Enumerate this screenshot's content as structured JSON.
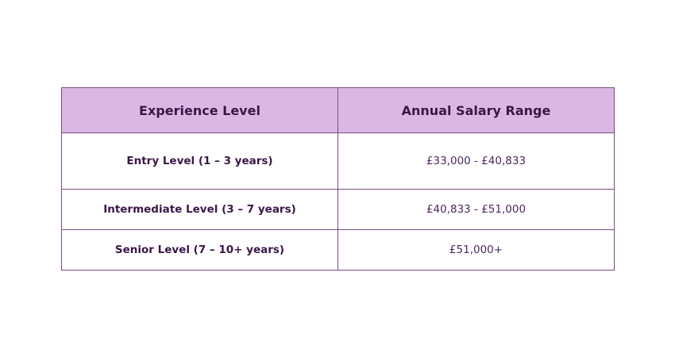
{
  "table": {
    "headers": [
      "Experience Level",
      "Annual Salary Range"
    ],
    "rows": [
      {
        "level": "Entry Level (1 – 3 years)",
        "salary": "£33,000 - £40,833"
      },
      {
        "level": "Intermediate Level (3 – 7 years)",
        "salary": "£40,833 - £51,000"
      },
      {
        "level": "Senior Level (7 – 10+ years)",
        "salary": "£51,000+"
      }
    ]
  },
  "colors": {
    "header_bg": "#dbb8e4",
    "border": "#7b4d86",
    "text": "#3a1748"
  }
}
